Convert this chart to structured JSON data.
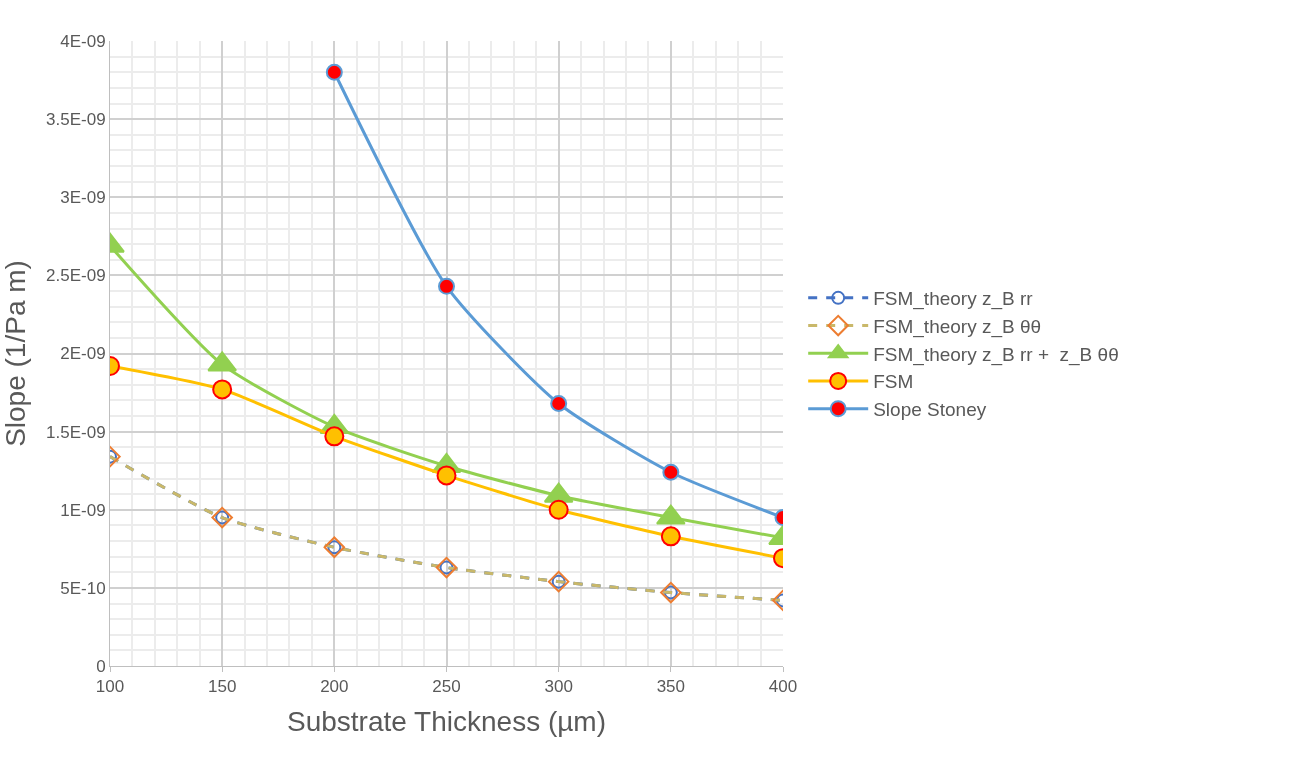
{
  "chart_data": {
    "type": "line",
    "xlabel": "Substrate Thickness (µm)",
    "ylabel": "Slope (1/Pa m)",
    "x": [
      100,
      150,
      200,
      250,
      300,
      350,
      400
    ],
    "xlim": [
      100,
      400
    ],
    "xticks": [
      100,
      150,
      200,
      250,
      300,
      350,
      400
    ],
    "ylim": [
      0,
      4e-09
    ],
    "yticks": [
      0,
      {
        "value": 5e-10,
        "label": "5E-10"
      },
      {
        "value": 1e-09,
        "label": "1E-09"
      },
      {
        "value": 1.5e-09,
        "label": "1.5E-09"
      },
      {
        "value": 2e-09,
        "label": "2E-09"
      },
      {
        "value": 2.5e-09,
        "label": "2.5E-09"
      },
      {
        "value": 3e-09,
        "label": "3E-09"
      },
      {
        "value": 3.5e-09,
        "label": "3.5E-09"
      },
      {
        "value": 4e-09,
        "label": "4E-09"
      }
    ],
    "grid": true,
    "legend": "right",
    "series": [
      {
        "name": "FSM_theory z_B rr",
        "color": "#4472c4",
        "marker": "circle",
        "line_style": "dashed",
        "values": [
          1.34e-09,
          9.5e-10,
          7.6e-10,
          6.3e-10,
          5.4e-10,
          4.7e-10,
          4.2e-10
        ]
      },
      {
        "name": "FSM_theory z_B θθ",
        "color": "#c9b86a",
        "marker": "diamond",
        "line_style": "dashed",
        "values": [
          1.34e-09,
          9.5e-10,
          7.6e-10,
          6.3e-10,
          5.4e-10,
          4.7e-10,
          4.2e-10
        ]
      },
      {
        "name": "FSM_theory z_B rr +  z_B θθ",
        "color": "#92d050",
        "marker": "triangle",
        "line_style": "solid",
        "values": [
          2.69e-09,
          1.93e-09,
          1.53e-09,
          1.28e-09,
          1.09e-09,
          9.5e-10,
          8.2e-10
        ]
      },
      {
        "name": "FSM",
        "color": "#ffc000",
        "marker": "circle",
        "line_style": "solid",
        "values": [
          1.92e-09,
          1.77e-09,
          1.47e-09,
          1.22e-09,
          1e-09,
          8.3e-10,
          6.9e-10
        ]
      },
      {
        "name": "Slope Stoney",
        "color": "#5b9bd5",
        "marker": "circle",
        "line_style": "solid",
        "values": [
          null,
          null,
          3.8e-09,
          2.43e-09,
          1.68e-09,
          1.24e-09,
          9.5e-10
        ]
      }
    ]
  }
}
